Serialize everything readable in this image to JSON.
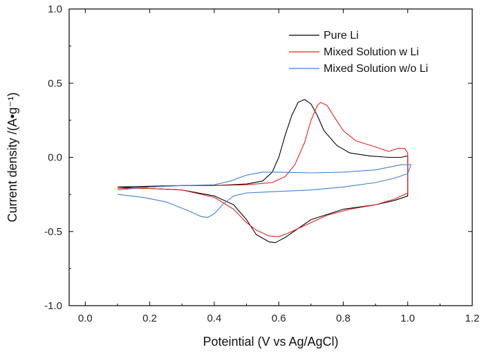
{
  "chart_data": {
    "type": "line",
    "title": "",
    "xlabel": "Poteintial (V vs Ag/AgCl)",
    "ylabel": "Current density /(A•g⁻¹)",
    "xlim": [
      -0.05,
      1.2
    ],
    "ylim": [
      -1.0,
      1.0
    ],
    "x_ticks": [
      "0.0",
      "0.2",
      "0.4",
      "0.6",
      "0.8",
      "1.0",
      "1.2"
    ],
    "y_ticks": [
      "-1.0",
      "-0.5",
      "0.0",
      "0.5",
      "1.0"
    ],
    "grid": false,
    "legend_position": "top-right",
    "series": [
      {
        "name": "Pure Li",
        "color": "#000000",
        "points": [
          [
            0.1,
            -0.2
          ],
          [
            0.2,
            -0.195
          ],
          [
            0.3,
            -0.19
          ],
          [
            0.4,
            -0.19
          ],
          [
            0.5,
            -0.18
          ],
          [
            0.55,
            -0.16
          ],
          [
            0.58,
            -0.1
          ],
          [
            0.6,
            0.0
          ],
          [
            0.62,
            0.15
          ],
          [
            0.64,
            0.28
          ],
          [
            0.66,
            0.37
          ],
          [
            0.68,
            0.39
          ],
          [
            0.7,
            0.36
          ],
          [
            0.72,
            0.28
          ],
          [
            0.74,
            0.18
          ],
          [
            0.78,
            0.08
          ],
          [
            0.82,
            0.03
          ],
          [
            0.88,
            0.01
          ],
          [
            0.94,
            0.0
          ],
          [
            0.98,
            0.0
          ],
          [
            1.0,
            0.01
          ],
          [
            1.0,
            -0.26
          ],
          [
            0.96,
            -0.29
          ],
          [
            0.9,
            -0.32
          ],
          [
            0.8,
            -0.35
          ],
          [
            0.7,
            -0.42
          ],
          [
            0.66,
            -0.48
          ],
          [
            0.62,
            -0.54
          ],
          [
            0.59,
            -0.575
          ],
          [
            0.57,
            -0.57
          ],
          [
            0.53,
            -0.52
          ],
          [
            0.5,
            -0.42
          ],
          [
            0.46,
            -0.32
          ],
          [
            0.4,
            -0.26
          ],
          [
            0.3,
            -0.22
          ],
          [
            0.2,
            -0.21
          ],
          [
            0.1,
            -0.2
          ]
        ]
      },
      {
        "name": "Mixed Solution w Li",
        "color": "#e8211b",
        "points": [
          [
            0.1,
            -0.21
          ],
          [
            0.2,
            -0.2
          ],
          [
            0.3,
            -0.19
          ],
          [
            0.4,
            -0.19
          ],
          [
            0.5,
            -0.185
          ],
          [
            0.58,
            -0.17
          ],
          [
            0.62,
            -0.13
          ],
          [
            0.65,
            -0.05
          ],
          [
            0.68,
            0.1
          ],
          [
            0.7,
            0.25
          ],
          [
            0.72,
            0.35
          ],
          [
            0.73,
            0.37
          ],
          [
            0.75,
            0.35
          ],
          [
            0.77,
            0.28
          ],
          [
            0.8,
            0.18
          ],
          [
            0.84,
            0.11
          ],
          [
            0.9,
            0.07
          ],
          [
            0.94,
            0.04
          ],
          [
            0.97,
            0.06
          ],
          [
            0.99,
            0.06
          ],
          [
            1.0,
            0.03
          ],
          [
            1.0,
            -0.24
          ],
          [
            0.96,
            -0.28
          ],
          [
            0.9,
            -0.32
          ],
          [
            0.82,
            -0.35
          ],
          [
            0.75,
            -0.39
          ],
          [
            0.68,
            -0.46
          ],
          [
            0.63,
            -0.51
          ],
          [
            0.6,
            -0.535
          ],
          [
            0.57,
            -0.53
          ],
          [
            0.53,
            -0.49
          ],
          [
            0.5,
            -0.44
          ],
          [
            0.46,
            -0.35
          ],
          [
            0.4,
            -0.27
          ],
          [
            0.3,
            -0.22
          ],
          [
            0.2,
            -0.21
          ],
          [
            0.1,
            -0.21
          ]
        ]
      },
      {
        "name": "Mixed Solution w/o Li",
        "color": "#3f7fd6",
        "points": [
          [
            0.1,
            -0.25
          ],
          [
            0.18,
            -0.27
          ],
          [
            0.25,
            -0.3
          ],
          [
            0.32,
            -0.36
          ],
          [
            0.36,
            -0.4
          ],
          [
            0.38,
            -0.405
          ],
          [
            0.4,
            -0.38
          ],
          [
            0.43,
            -0.31
          ],
          [
            0.46,
            -0.26
          ],
          [
            0.5,
            -0.24
          ],
          [
            0.6,
            -0.23
          ],
          [
            0.7,
            -0.22
          ],
          [
            0.8,
            -0.2
          ],
          [
            0.9,
            -0.17
          ],
          [
            0.96,
            -0.14
          ],
          [
            1.0,
            -0.11
          ],
          [
            1.01,
            -0.05
          ],
          [
            0.98,
            -0.05
          ],
          [
            0.9,
            -0.085
          ],
          [
            0.8,
            -0.1
          ],
          [
            0.7,
            -0.105
          ],
          [
            0.6,
            -0.1
          ],
          [
            0.55,
            -0.1
          ],
          [
            0.5,
            -0.12
          ],
          [
            0.45,
            -0.16
          ],
          [
            0.4,
            -0.185
          ],
          [
            0.3,
            -0.19
          ],
          [
            0.2,
            -0.2
          ],
          [
            0.1,
            -0.22
          ]
        ]
      }
    ]
  }
}
